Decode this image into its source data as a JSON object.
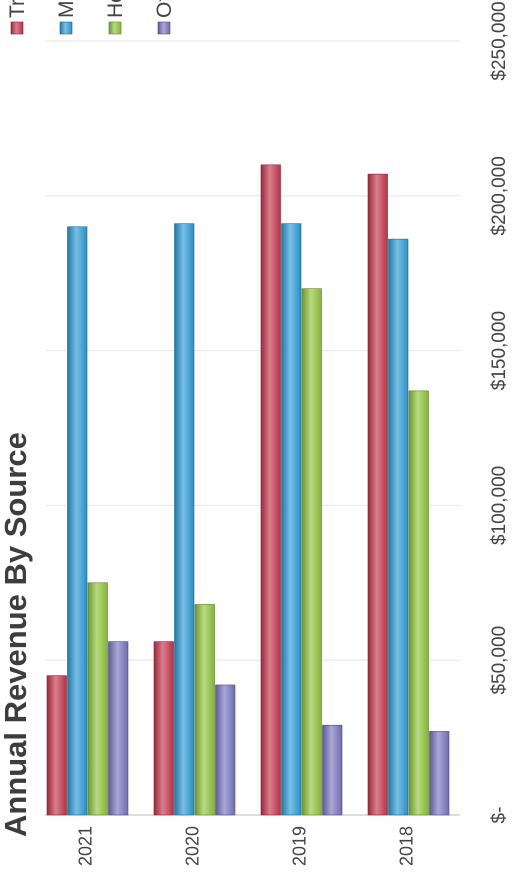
{
  "chart_data": {
    "type": "bar",
    "orientation": "horizontal",
    "title": "Annual Revenue By Source",
    "categories": [
      "2021",
      "2020",
      "2019",
      "2018"
    ],
    "series": [
      {
        "name": "Trans",
        "color": "#c8384f",
        "values": [
          45000,
          56000,
          210000,
          207000
        ]
      },
      {
        "name": "Mont",
        "color": "#2f9ed8",
        "values": [
          190000,
          191000,
          191000,
          186000
        ]
      },
      {
        "name": "Hotel",
        "color": "#92c83e",
        "values": [
          75000,
          68000,
          170000,
          137000
        ]
      },
      {
        "name": "Othe",
        "color": "#7b78c2",
        "values": [
          56000,
          42000,
          29000,
          27000
        ]
      }
    ],
    "value_axis": {
      "min": 0,
      "max": 250000,
      "ticks": [
        0,
        50000,
        100000,
        150000,
        200000,
        250000
      ],
      "tick_labels": [
        "$-",
        "$50,000",
        "$100,000",
        "$150,000",
        "$200,000",
        "$250,000"
      ]
    },
    "xlabel": "",
    "ylabel": "",
    "grid": true,
    "legend_position": "right"
  }
}
